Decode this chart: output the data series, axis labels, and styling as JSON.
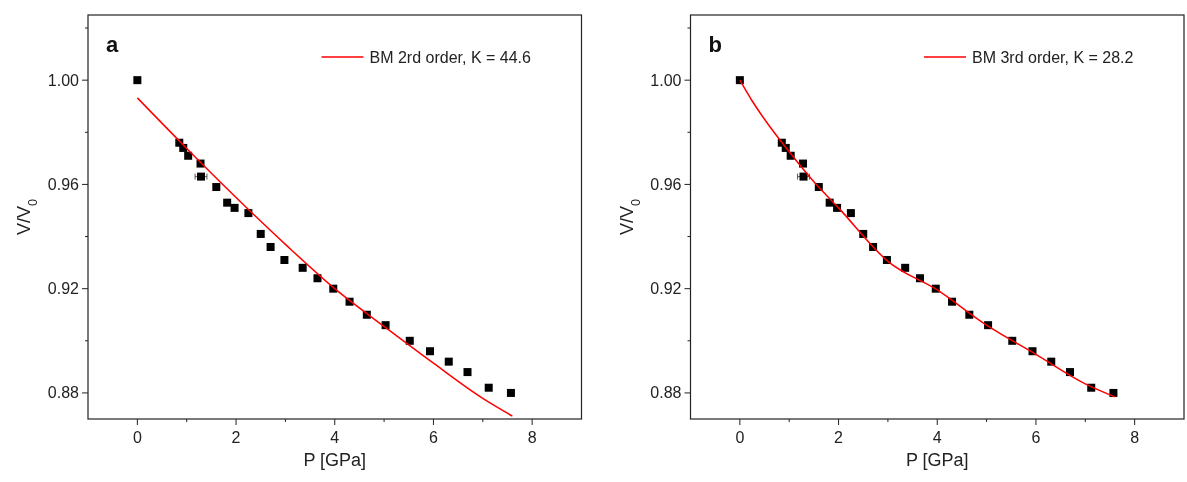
{
  "chart_data": [
    {
      "type": "scatter",
      "title": "a",
      "xlabel": "P [GPa]",
      "ylabel": "V/V$_{0}$",
      "xlim": [
        -1,
        9
      ],
      "ylim": [
        0.87,
        1.025
      ],
      "xticks": [
        0,
        {
          "value": 1,
          "label": null
        },
        2,
        {
          "value": 3,
          "label": null
        },
        4,
        {
          "value": 5,
          "label": null
        },
        6,
        {
          "value": 7,
          "label": null
        },
        8
      ],
      "yticks": [
        0.88,
        {
          "value": 0.9,
          "label": null
        },
        0.92,
        {
          "value": 0.94,
          "label": null
        },
        0.96,
        {
          "value": 0.98,
          "label": null
        },
        {
          "value": 1.0,
          "label": "1.00"
        },
        {
          "value": 1.02,
          "label": null
        }
      ],
      "grid": false,
      "legend": "top right",
      "series": [
        {
          "color": "#000000",
          "marker": "square",
          "x": [
            0,
            0.85,
            0.93,
            1.03,
            1.28,
            1.29,
            1.6,
            1.82,
            1.97,
            2.25,
            2.5,
            2.7,
            2.98,
            3.35,
            3.65,
            3.97,
            4.3,
            4.65,
            5.03,
            5.52,
            5.93,
            6.31,
            6.69,
            7.12,
            7.57
          ],
          "values": [
            1.0,
            0.976,
            0.974,
            0.971,
            0.968,
            0.963,
            0.959,
            0.953,
            0.951,
            0.949,
            0.941,
            0.936,
            0.931,
            0.928,
            0.924,
            0.92,
            0.915,
            0.91,
            0.906,
            0.9,
            0.896,
            0.892,
            0.888,
            0.882,
            0.88
          ],
          "xerrors": [
            null,
            null,
            null,
            null,
            null,
            0.12,
            null,
            null,
            null,
            null,
            null,
            null,
            null,
            null,
            null,
            null,
            null,
            null,
            null,
            null,
            null,
            null,
            null,
            null,
            null
          ]
        },
        {
          "type": "line",
          "name": "BM 2rd order, K = 44.6",
          "color": "#ff0000",
          "marker": "none",
          "line_style": "solid",
          "x": [
            0,
            1,
            2,
            3,
            4,
            5,
            6,
            7,
            7.6
          ],
          "values": [
            0.9932,
            0.9738,
            0.955,
            0.937,
            0.92,
            0.9055,
            0.8914,
            0.8779,
            0.8711
          ]
        }
      ]
    },
    {
      "type": "scatter",
      "title": "b",
      "xlabel": "P [GPa]",
      "ylabel": "V/V$_{0}$",
      "xlim": [
        -1,
        9
      ],
      "ylim": [
        0.87,
        1.025
      ],
      "xticks": [
        0,
        {
          "value": 1,
          "label": null
        },
        2,
        {
          "value": 3,
          "label": null
        },
        4,
        {
          "value": 5,
          "label": null
        },
        6,
        {
          "value": 7,
          "label": null
        },
        8
      ],
      "yticks": [
        0.88,
        {
          "value": 0.9,
          "label": null
        },
        0.92,
        {
          "value": 0.94,
          "label": null
        },
        0.96,
        {
          "value": 0.98,
          "label": null
        },
        {
          "value": 1.0,
          "label": "1.00"
        },
        {
          "value": 1.02,
          "label": null
        }
      ],
      "grid": false,
      "legend": "top right",
      "series": [
        {
          "color": "#000000",
          "marker": "square",
          "x": [
            0,
            0.85,
            0.93,
            1.03,
            1.28,
            1.29,
            1.6,
            1.82,
            1.97,
            2.25,
            2.5,
            2.7,
            2.98,
            3.35,
            3.65,
            3.97,
            4.3,
            4.65,
            5.03,
            5.52,
            5.93,
            6.31,
            6.69,
            7.12,
            7.57
          ],
          "values": [
            1.0,
            0.976,
            0.974,
            0.971,
            0.968,
            0.963,
            0.959,
            0.953,
            0.951,
            0.949,
            0.941,
            0.936,
            0.931,
            0.928,
            0.924,
            0.92,
            0.915,
            0.91,
            0.906,
            0.9,
            0.896,
            0.892,
            0.888,
            0.882,
            0.88
          ],
          "xerrors": [
            null,
            null,
            null,
            null,
            null,
            0.12,
            null,
            null,
            null,
            null,
            null,
            null,
            null,
            null,
            null,
            null,
            null,
            null,
            null,
            null,
            null,
            null,
            null,
            null,
            null
          ]
        },
        {
          "type": "line",
          "name": "BM 3rd order, K = 28.2",
          "color": "#ff0000",
          "marker": "none",
          "line_style": "solid",
          "x": [
            0,
            0.25,
            0.5,
            1,
            1.5,
            2,
            3,
            4,
            5,
            6,
            7,
            7.6
          ],
          "values": [
            1.0,
            0.992,
            0.985,
            0.9725,
            0.961,
            0.951,
            0.9305,
            0.9195,
            0.906,
            0.8948,
            0.8835,
            0.8785
          ]
        }
      ]
    }
  ]
}
